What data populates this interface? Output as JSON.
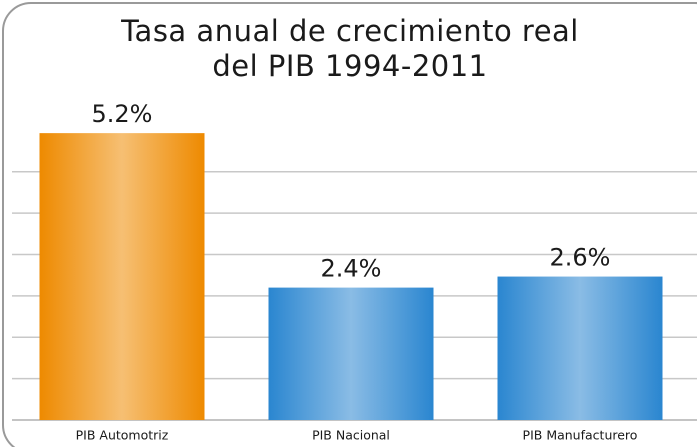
{
  "chart_data": {
    "type": "bar",
    "title": "Tasa anual de crecimiento real",
    "subtitle": "del PIB 1994-2011",
    "categories": [
      "PIB Automotriz",
      "PIB Nacional",
      "PIB Manufacturero"
    ],
    "values": [
      5.2,
      2.4,
      2.6
    ],
    "value_labels": [
      "5.2%",
      "2.4%",
      "2.6%"
    ],
    "colors": [
      "#ee8a00",
      "#2a86d0",
      "#2a86d0"
    ],
    "ylim": [
      0,
      6
    ],
    "yticks": [
      0.75,
      1.5,
      2.25,
      3,
      3.75,
      4.5
    ],
    "grid": true
  }
}
